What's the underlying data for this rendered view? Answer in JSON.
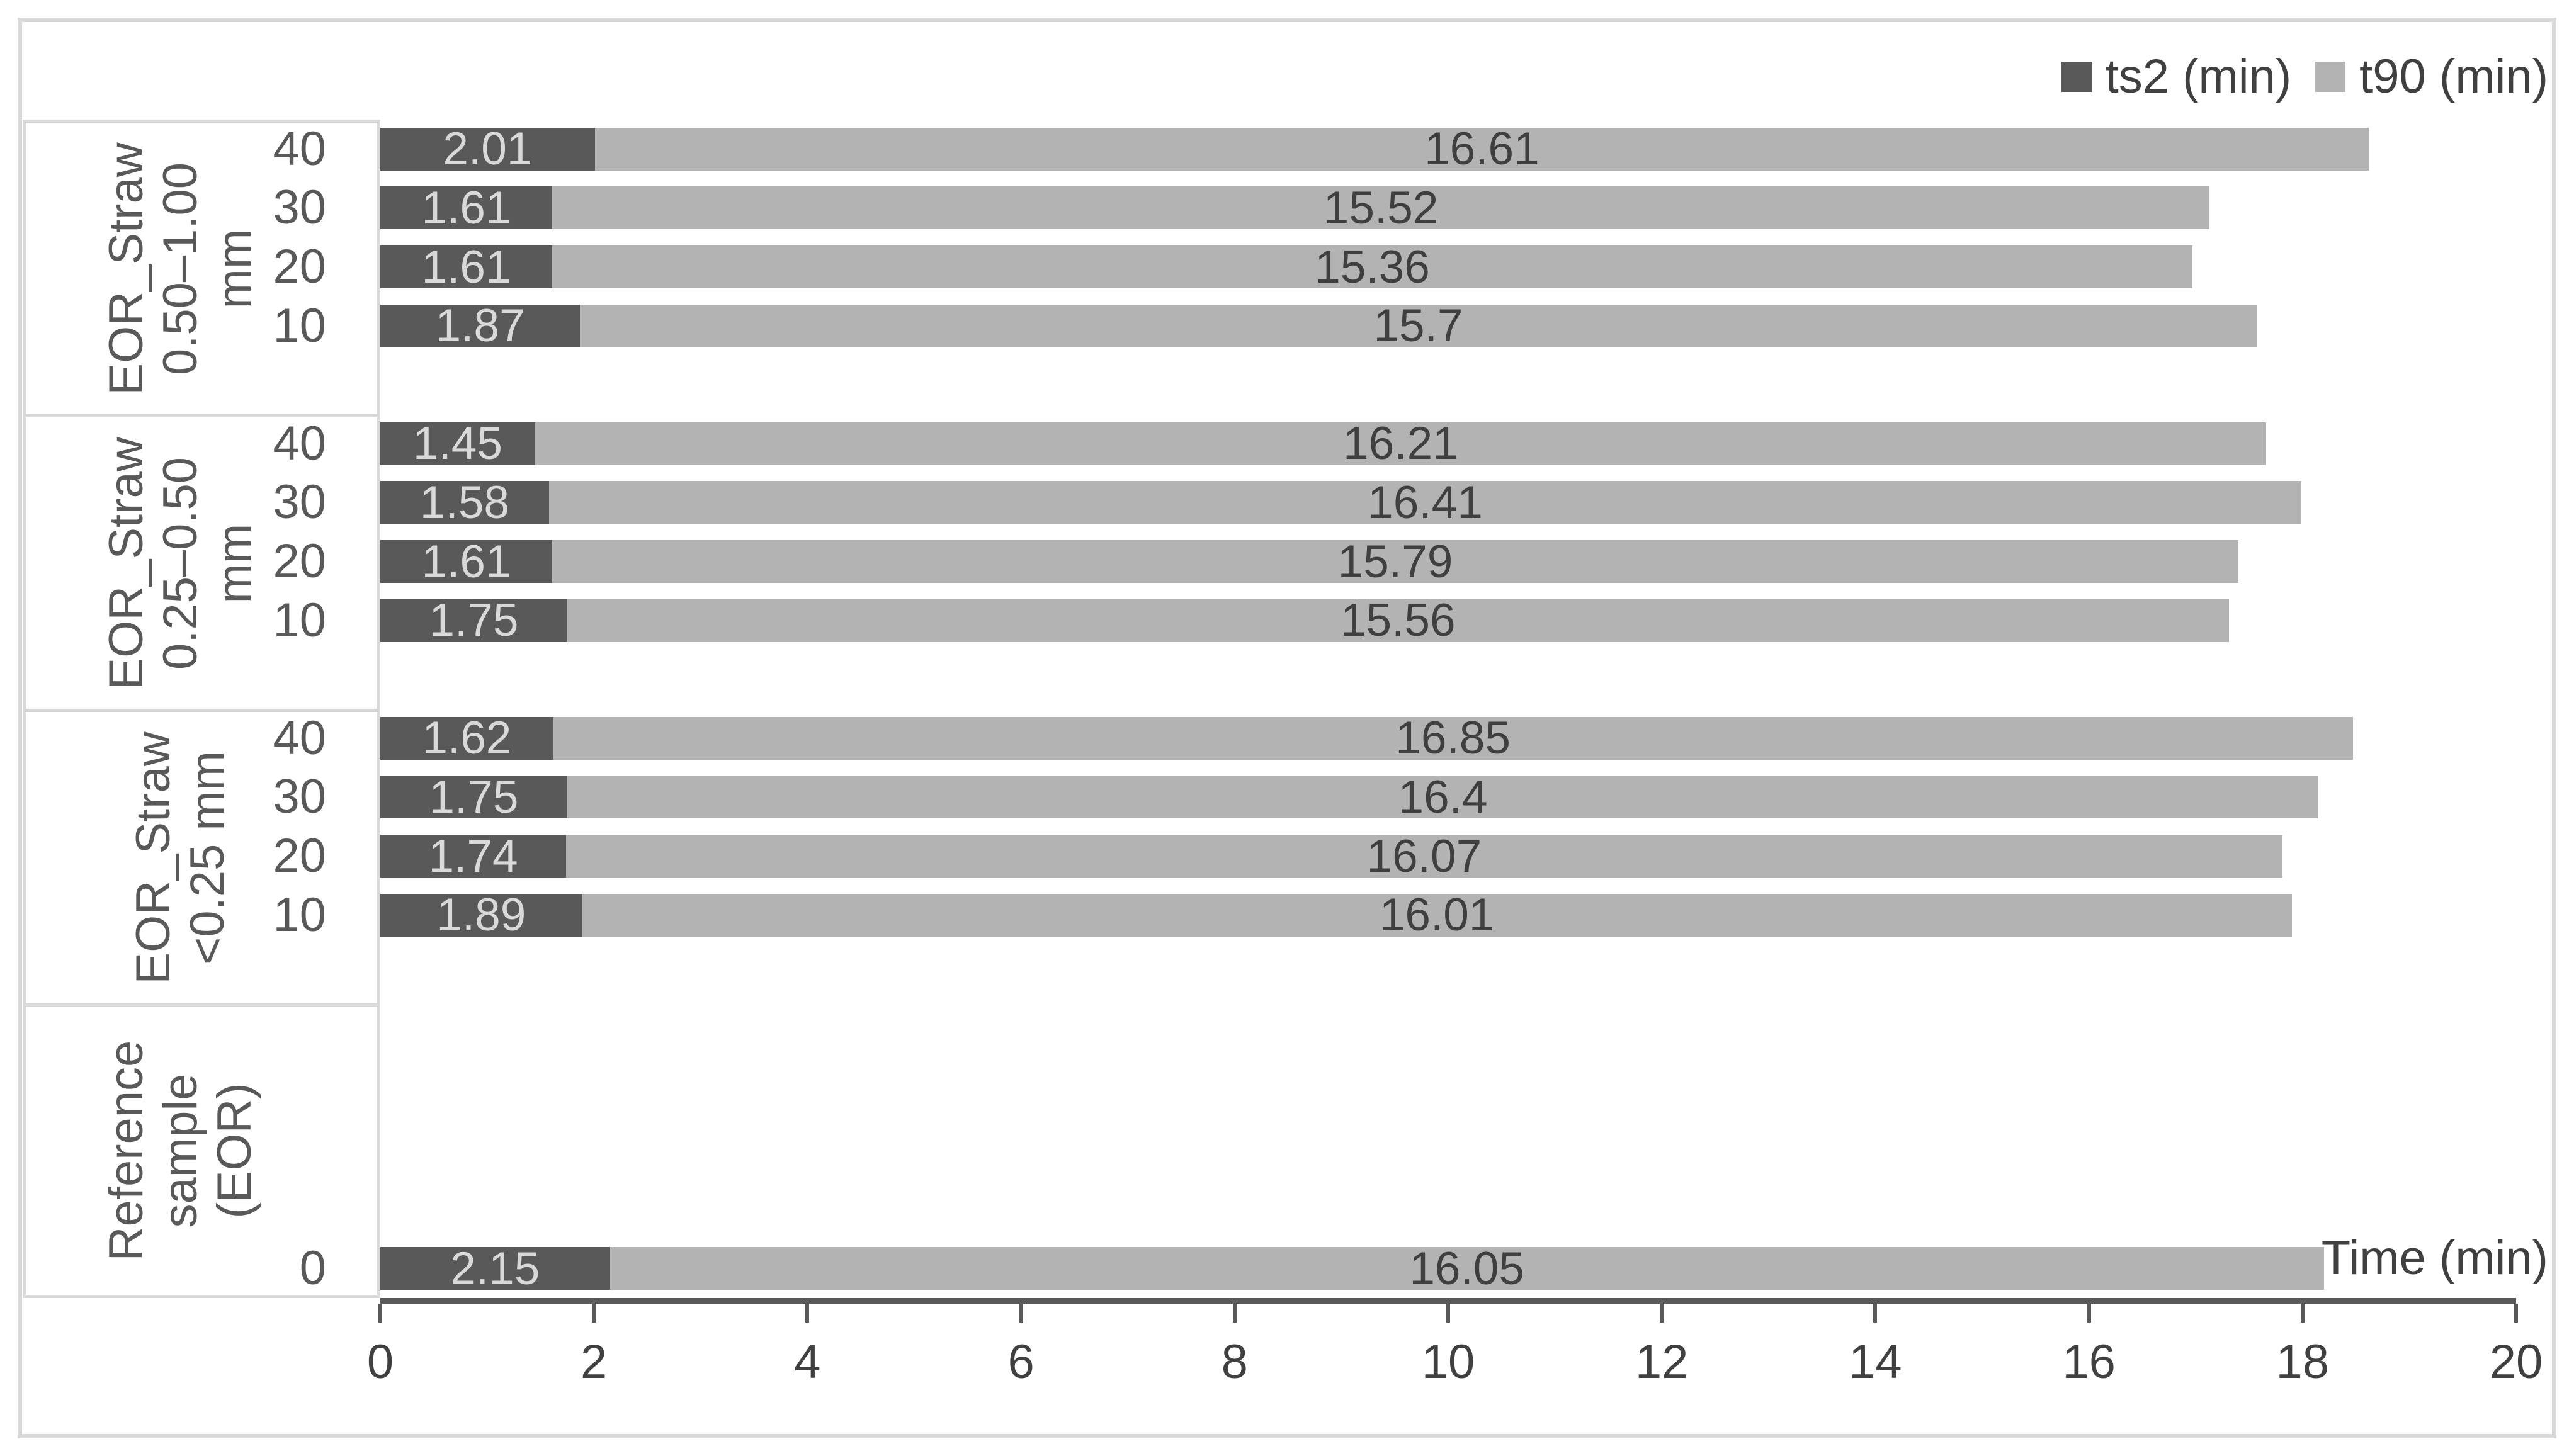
{
  "frame": {
    "border_color": "#d9d9d9",
    "background": "#ffffff"
  },
  "chart_data": {
    "type": "bar",
    "orientation": "horizontal",
    "stacked": true,
    "title": "",
    "grid": false,
    "legend_position": "top-right",
    "x_axis": {
      "title": "Time (min)",
      "min": 0,
      "max": 20,
      "tick_interval": 2,
      "tick_labels": [
        "0",
        "2",
        "4",
        "6",
        "8",
        "10",
        "12",
        "14",
        "16",
        "18",
        "20"
      ]
    },
    "series": [
      {
        "name": "ts2 (min)",
        "color": "#595959",
        "label_color": "#d9d9d9"
      },
      {
        "name": "t90 (min)",
        "color": "#b3b3b3",
        "label_color": "#3f3f3f"
      }
    ],
    "groups": [
      {
        "label": "EOR_Straw\n0.50–1.00\nmm",
        "slot_offset": 0,
        "rows": [
          {
            "category": "40",
            "values": [
              2.01,
              16.61
            ],
            "labels": [
              "2.01",
              "16.61"
            ]
          },
          {
            "category": "30",
            "values": [
              1.61,
              15.52
            ],
            "labels": [
              "1.61",
              "15.52"
            ]
          },
          {
            "category": "20",
            "values": [
              1.61,
              15.36
            ],
            "labels": [
              "1.61",
              "15.36"
            ]
          },
          {
            "category": "10",
            "values": [
              1.87,
              15.7
            ],
            "labels": [
              "1.87",
              "15.7"
            ]
          }
        ]
      },
      {
        "label": "EOR_Straw\n0.25–0.50\nmm",
        "slot_offset": 0,
        "rows": [
          {
            "category": "40",
            "values": [
              1.45,
              16.21
            ],
            "labels": [
              "1.45",
              "16.21"
            ]
          },
          {
            "category": "30",
            "values": [
              1.58,
              16.41
            ],
            "labels": [
              "1.58",
              "16.41"
            ]
          },
          {
            "category": "20",
            "values": [
              1.61,
              15.79
            ],
            "labels": [
              "1.61",
              "15.79"
            ]
          },
          {
            "category": "10",
            "values": [
              1.75,
              15.56
            ],
            "labels": [
              "1.75",
              "15.56"
            ]
          }
        ]
      },
      {
        "label": "EOR_Straw\n<0.25 mm",
        "slot_offset": 0,
        "rows": [
          {
            "category": "40",
            "values": [
              1.62,
              16.85
            ],
            "labels": [
              "1.62",
              "16.85"
            ]
          },
          {
            "category": "30",
            "values": [
              1.75,
              16.4
            ],
            "labels": [
              "1.75",
              "16.4"
            ]
          },
          {
            "category": "20",
            "values": [
              1.74,
              16.07
            ],
            "labels": [
              "1.74",
              "16.07"
            ]
          },
          {
            "category": "10",
            "values": [
              1.89,
              16.01
            ],
            "labels": [
              "1.89",
              "16.01"
            ]
          }
        ]
      },
      {
        "label": "Reference\nsample (EOR)",
        "slot_offset": 4,
        "rows": [
          {
            "category": "0",
            "values": [
              2.15,
              16.05
            ],
            "labels": [
              "2.15",
              "16.05"
            ]
          }
        ]
      }
    ]
  }
}
